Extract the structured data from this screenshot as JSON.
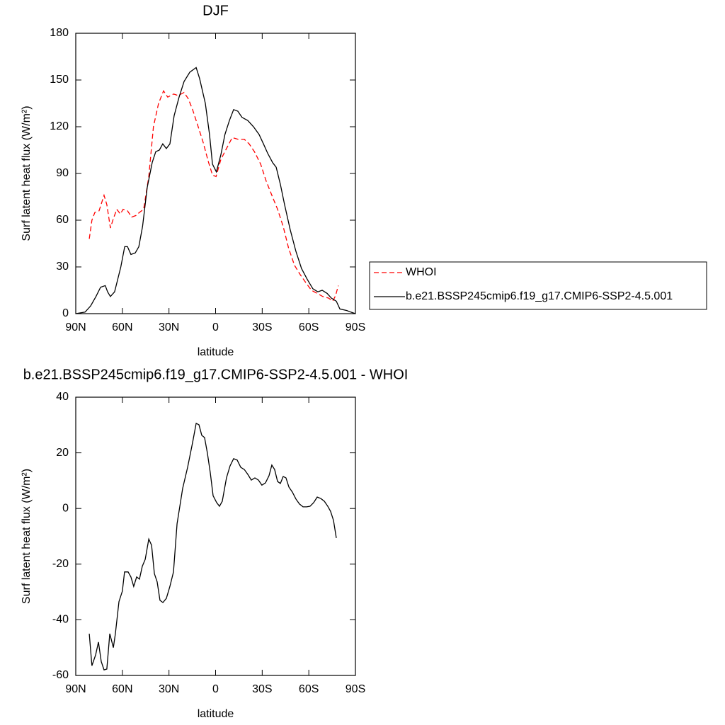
{
  "chart_data": [
    {
      "type": "line",
      "title": "DJF",
      "xlabel": "latitude",
      "ylabel": "Surf latent heat flux (W/m²)",
      "xlim": [
        90,
        -90
      ],
      "xticks": [
        {
          "value": 90,
          "label": "90N"
        },
        {
          "value": 60,
          "label": "60N"
        },
        {
          "value": 30,
          "label": "30N"
        },
        0,
        {
          "value": -30,
          "label": "30S"
        },
        {
          "value": -60,
          "label": "60S"
        },
        {
          "value": -90,
          "label": "90S"
        }
      ],
      "ylim": [
        0,
        180
      ],
      "yticks": [
        0,
        30,
        60,
        90,
        120,
        150,
        180
      ],
      "legend": "right",
      "series": [
        {
          "name": "WHOI",
          "color": "#ff0000",
          "line_style": "dashed",
          "x": [
            81.3,
            79.6,
            77.7,
            75,
            71.8,
            70,
            67.7,
            65.8,
            63.6,
            61.3,
            59.5,
            56.7,
            54,
            51.3,
            49,
            46.3,
            43,
            40,
            36.7,
            33.5,
            30.8,
            27,
            24,
            20.3,
            17.6,
            14.8,
            11.2,
            8,
            4.8,
            2,
            -0.3,
            -3.4,
            -7,
            -10.7,
            -14.3,
            -18.4,
            -21.6,
            -25,
            -29,
            -32.6,
            -36.2,
            -39.9,
            -43.5,
            -47,
            -50.8,
            -54.5,
            -58,
            -61.7,
            -65.4,
            -69,
            -72.7,
            -75.4,
            -77.2,
            -79
          ],
          "values": [
            48,
            60,
            65,
            66,
            76,
            70,
            55,
            61,
            67,
            64,
            67,
            66,
            62,
            63,
            65,
            67,
            88,
            120,
            135,
            143,
            139,
            141,
            140,
            142,
            138,
            131,
            120,
            110,
            98,
            89,
            88,
            99,
            106,
            113,
            112,
            112,
            109,
            104,
            96,
            85,
            76,
            67,
            56,
            42,
            31,
            25,
            20,
            15,
            13,
            11,
            10,
            8,
            11.5,
            18
          ]
        },
        {
          "name": "b.e21.BSSP245cmip6.f19_g17.CMIP6-SSP2-4.5.001",
          "color": "#000000",
          "line_style": "solid",
          "x": [
            90,
            84,
            80.4,
            77,
            74,
            71,
            69.5,
            67.7,
            65,
            63,
            61,
            58.5,
            56.7,
            54.5,
            51.7,
            49.4,
            47,
            44,
            40.8,
            38.5,
            36.2,
            34,
            31.7,
            29.4,
            26.7,
            23.5,
            20.3,
            16.6,
            12.5,
            10.3,
            6.6,
            3.9,
            2,
            -0.5,
            -3.4,
            -6,
            -8.9,
            -11.6,
            -14.3,
            -17,
            -20.7,
            -24.4,
            -28,
            -30.8,
            -33.5,
            -36.7,
            -39,
            -41.7,
            -44.4,
            -48,
            -51.7,
            -55.3,
            -59,
            -62.6,
            -65.8,
            -68.6,
            -71.8,
            -74.5,
            -77.7,
            -80,
            -84.5,
            -87,
            -90
          ],
          "values": [
            0,
            1,
            5,
            11,
            17,
            18,
            14,
            11,
            14,
            22,
            30,
            43,
            43,
            38,
            39,
            43,
            56,
            81,
            97,
            104,
            105,
            109,
            106,
            109,
            127,
            139,
            149,
            155,
            158,
            151,
            135,
            115,
            96,
            91,
            102,
            115,
            124,
            131,
            130,
            126,
            124,
            120,
            115,
            109,
            103,
            97,
            94,
            83,
            70,
            54,
            40,
            29,
            22,
            16,
            14,
            15,
            13,
            10,
            8,
            3,
            2,
            1,
            0
          ]
        }
      ]
    },
    {
      "type": "line",
      "title": "b.e21.BSSP245cmip6.f19_g17.CMIP6-SSP2-4.5.001 - WHOI",
      "xlabel": "latitude",
      "ylabel": "Surf latent heat flux (W/m²)",
      "xlim": [
        90,
        -90
      ],
      "xticks": [
        {
          "value": 90,
          "label": "90N"
        },
        {
          "value": 60,
          "label": "60N"
        },
        {
          "value": 30,
          "label": "30N"
        },
        0,
        {
          "value": -30,
          "label": "30S"
        },
        {
          "value": -60,
          "label": "60S"
        },
        {
          "value": -90,
          "label": "90S"
        }
      ],
      "ylim": [
        -60,
        40
      ],
      "yticks": [
        -60,
        -40,
        -20,
        0,
        20,
        40
      ],
      "series": [
        {
          "color": "#000000",
          "line_style": "solid",
          "x": [
            81.3,
            79.6,
            77.2,
            75.4,
            73.6,
            71.8,
            70,
            68.1,
            65.8,
            64.5,
            62.2,
            60,
            58.6,
            56.3,
            54.5,
            52.7,
            50.8,
            49,
            47.2,
            45.3,
            43,
            41.2,
            39.4,
            37.6,
            35.8,
            33.9,
            31.7,
            29.4,
            27.1,
            24.8,
            21.2,
            18,
            14.8,
            12.5,
            10.7,
            8.9,
            7.1,
            5.3,
            3.4,
            1.6,
            -0.7,
            -2.5,
            -4.3,
            -7,
            -9.3,
            -11.6,
            -13.9,
            -16.2,
            -18.5,
            -20.7,
            -23,
            -25.3,
            -27.6,
            -29.8,
            -32.1,
            -34.4,
            -36.2,
            -38,
            -39.9,
            -41.7,
            -43.5,
            -45.3,
            -47.2,
            -49.4,
            -51.7,
            -54,
            -56.3,
            -58.6,
            -60.8,
            -63.1,
            -65.4,
            -67.7,
            -70,
            -72.2,
            -74,
            -75.9,
            -77.7
          ],
          "values": [
            -45,
            -56.5,
            -52.6,
            -48,
            -55,
            -58,
            -57.7,
            -45,
            -50,
            -45,
            -33.5,
            -29.7,
            -22.8,
            -22.8,
            -24.6,
            -28,
            -24.6,
            -25.4,
            -20.8,
            -18.3,
            -11,
            -13.2,
            -23.4,
            -26.4,
            -33,
            -33.8,
            -32.3,
            -28,
            -22.8,
            -5.5,
            7.2,
            14.8,
            23.7,
            30.6,
            30.1,
            26.3,
            25.5,
            20,
            12.8,
            4.6,
            2.1,
            0.8,
            2.6,
            11,
            15.3,
            17.9,
            17.4,
            14.8,
            14,
            12.3,
            10.2,
            11,
            10.2,
            8.4,
            9.2,
            11.8,
            15.6,
            14,
            9.7,
            9,
            11.5,
            11,
            7.7,
            5.9,
            3.4,
            1.6,
            0.6,
            0.6,
            0.8,
            2.1,
            4.1,
            3.6,
            2.6,
            0.8,
            -1,
            -4.3,
            -10.6
          ]
        }
      ]
    }
  ]
}
